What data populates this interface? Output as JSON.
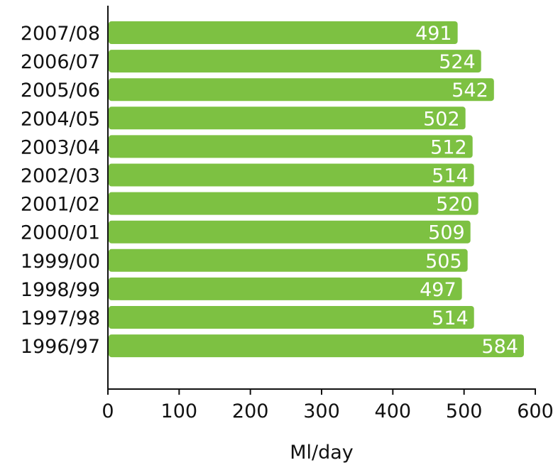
{
  "chart_data": {
    "type": "bar",
    "orientation": "horizontal",
    "categories": [
      "2007/08",
      "2006/07",
      "2005/06",
      "2004/05",
      "2003/04",
      "2002/03",
      "2001/02",
      "2000/01",
      "1999/00",
      "1998/99",
      "1997/98",
      "1996/97"
    ],
    "values": [
      491,
      524,
      542,
      502,
      512,
      514,
      520,
      509,
      505,
      497,
      514,
      584
    ],
    "data_labels": [
      "491",
      "524",
      "542",
      "502",
      "512",
      "514",
      "520",
      "509",
      "505",
      "497",
      "514",
      "584"
    ],
    "xlabel": "Ml/day",
    "ylabel": "",
    "title": "",
    "xlim": [
      0,
      600
    ],
    "x_ticks": [
      0,
      100,
      200,
      300,
      400,
      500,
      600
    ],
    "x_tick_labels": [
      "0",
      "100",
      "200",
      "300",
      "400",
      "500",
      "600"
    ],
    "grid": false,
    "bar_color": "#7dc142",
    "label_color": "#ffffff",
    "axis_color": "#111111"
  }
}
